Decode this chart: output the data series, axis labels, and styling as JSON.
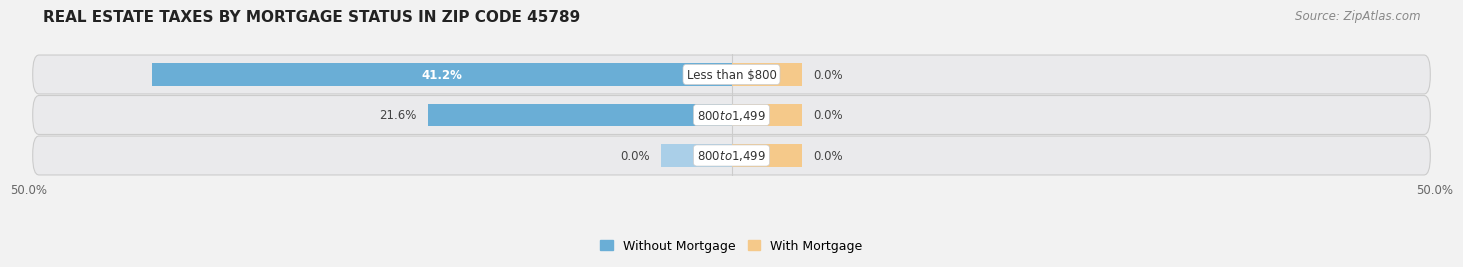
{
  "title": "REAL ESTATE TAXES BY MORTGAGE STATUS IN ZIP CODE 45789",
  "source": "Source: ZipAtlas.com",
  "rows": [
    {
      "label": "Less than $800",
      "without_mortgage": 41.2,
      "with_mortgage": 0.0,
      "wm_label_inside": true
    },
    {
      "label": "$800 to $1,499",
      "without_mortgage": 21.6,
      "with_mortgage": 0.0,
      "wm_label_inside": false
    },
    {
      "label": "$800 to $1,499",
      "without_mortgage": 0.0,
      "with_mortgage": 0.0,
      "wm_label_inside": false
    }
  ],
  "max_val": 50.0,
  "with_stub": 5.0,
  "without_stub": 5.0,
  "bar_height": 0.62,
  "without_color": "#6aaed6",
  "without_color_light": "#aacfe8",
  "with_color": "#f5c98a",
  "bg_color": "#f2f2f2",
  "row_bg_color": "#e4e6e9",
  "title_fontsize": 11,
  "source_fontsize": 8.5,
  "label_fontsize": 8.5,
  "legend_fontsize": 9,
  "axis_fontsize": 8.5
}
